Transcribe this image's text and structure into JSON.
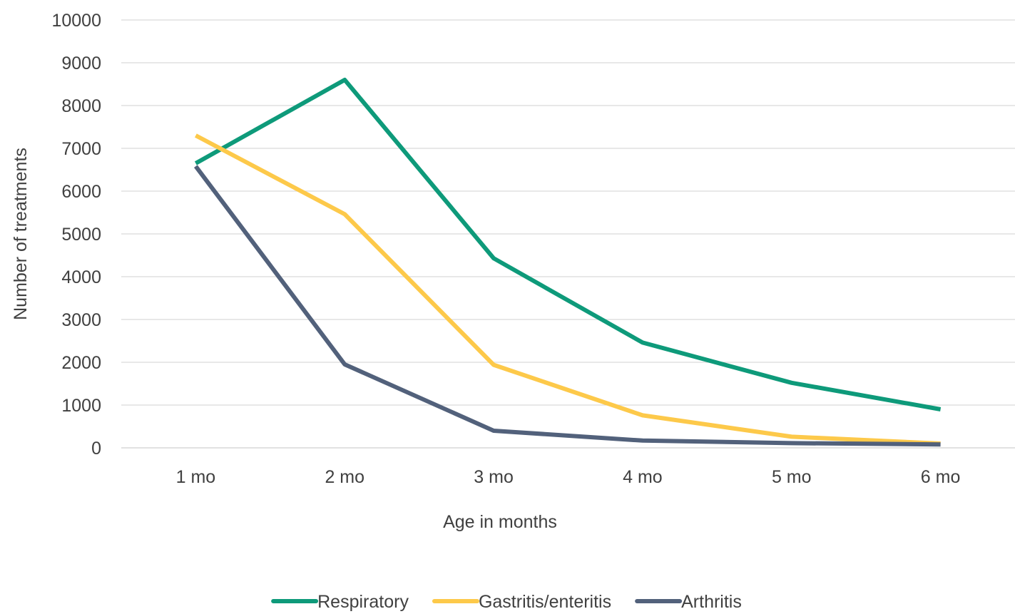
{
  "chart_data": {
    "type": "line",
    "title": "",
    "xlabel": "Age in months",
    "ylabel": "Number of treatments",
    "categories": [
      "1 mo",
      "2 mo",
      "3 mo",
      "4 mo",
      "5 mo",
      "6 mo"
    ],
    "ylim": [
      0,
      10000
    ],
    "yticks": [
      0,
      1000,
      2000,
      3000,
      4000,
      5000,
      6000,
      7000,
      8000,
      9000,
      10000
    ],
    "grid": true,
    "legend_position": "bottom",
    "series": [
      {
        "name": "Respiratory",
        "color": "#0e9a7a",
        "values": [
          6650,
          8600,
          4430,
          2460,
          1520,
          900
        ]
      },
      {
        "name": "Gastritis/enteritis",
        "color": "#fdc94a",
        "values": [
          7300,
          5460,
          1940,
          760,
          260,
          100
        ]
      },
      {
        "name": "Arthritis",
        "color": "#52617b",
        "values": [
          6580,
          1950,
          400,
          170,
          110,
          80
        ]
      }
    ]
  }
}
